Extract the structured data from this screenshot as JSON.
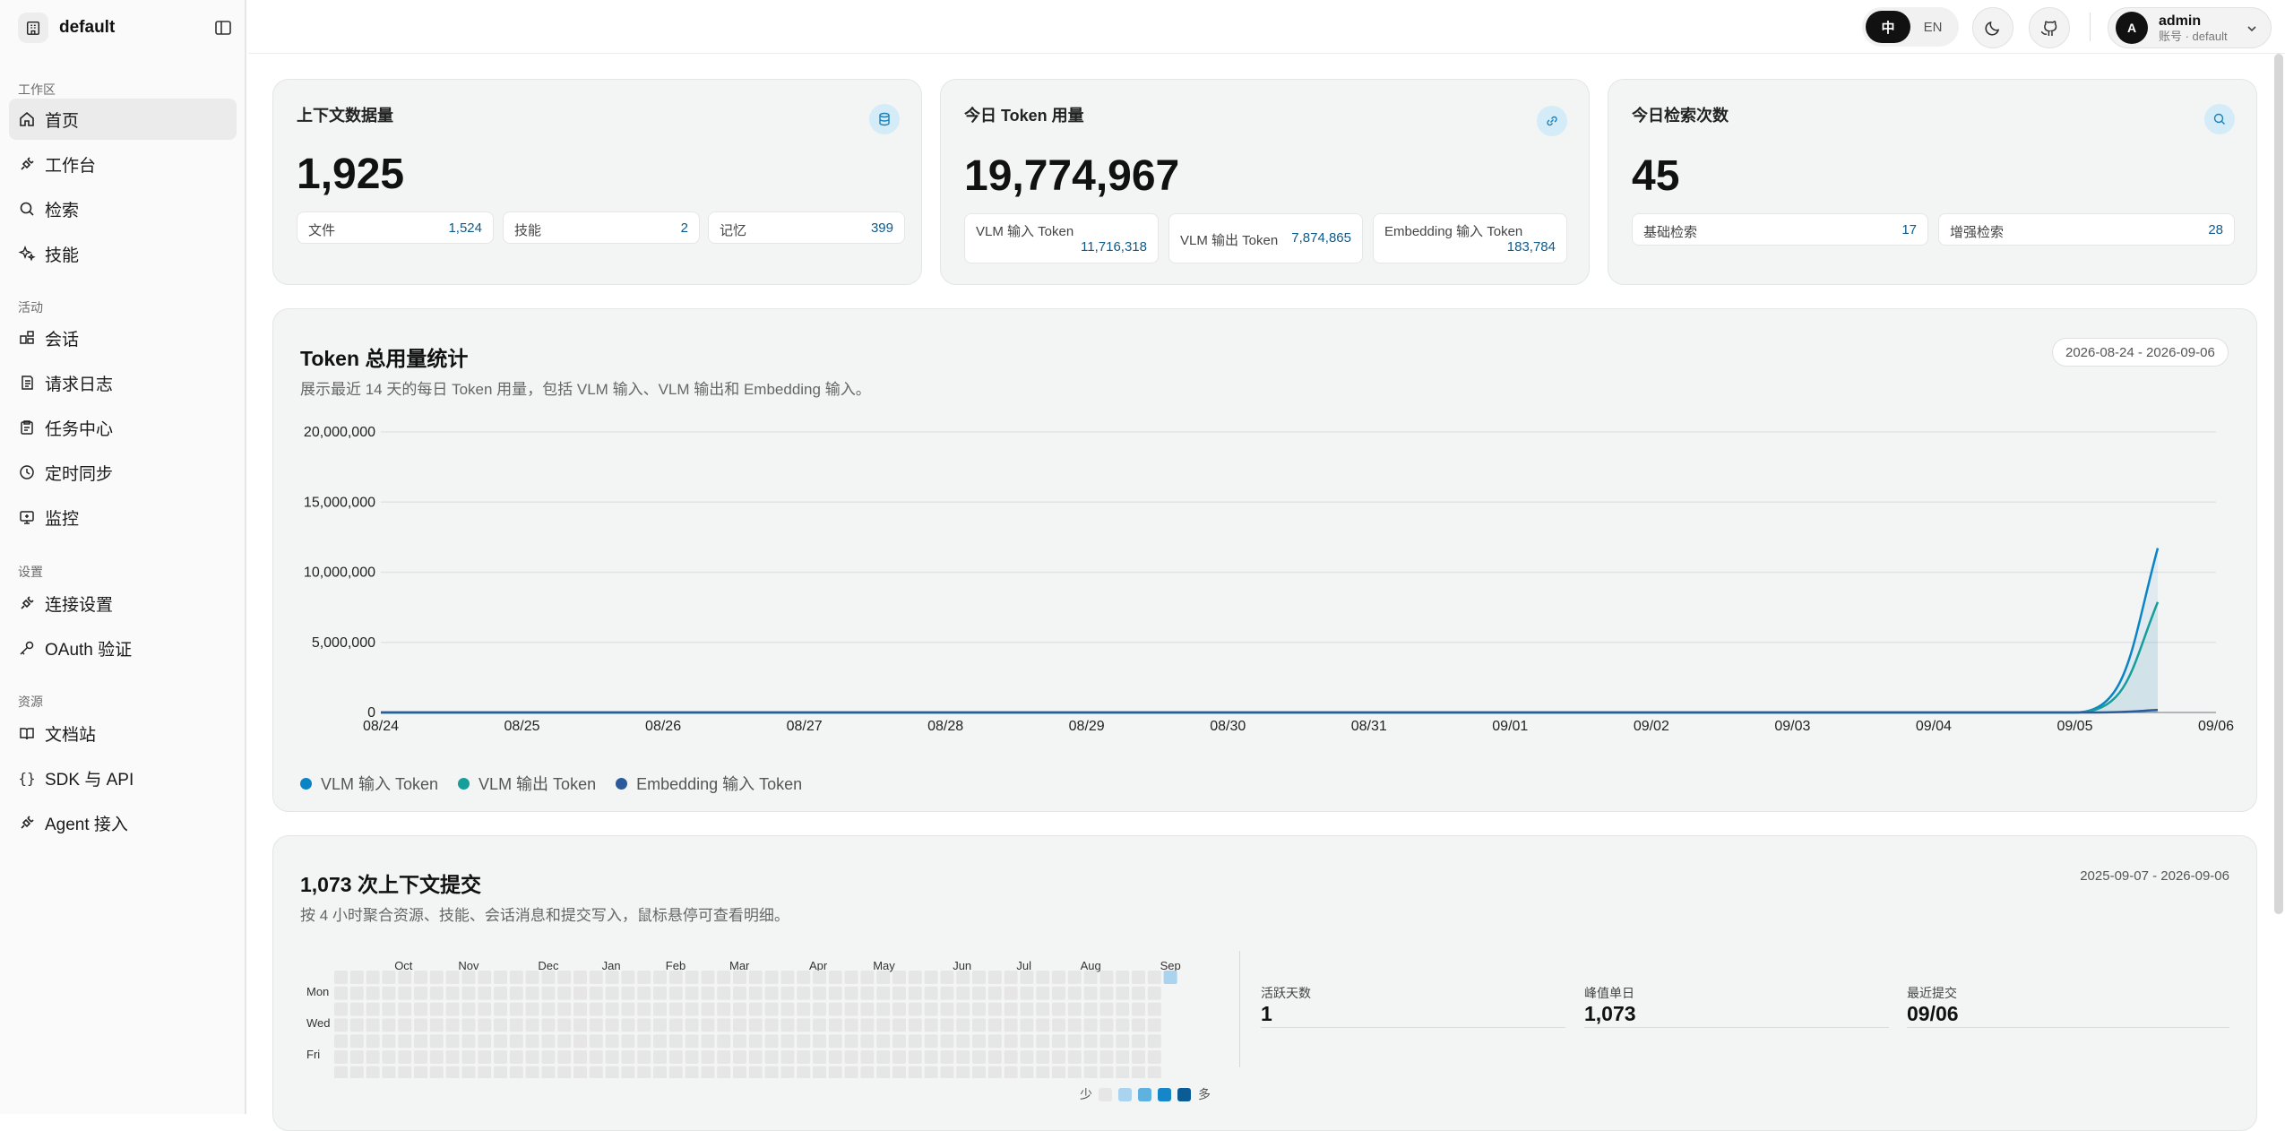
{
  "workspace": {
    "name": "default"
  },
  "sidebar": {
    "sections": [
      {
        "label": "工作区",
        "items": [
          {
            "label": "首页",
            "icon": "home-icon",
            "active": true
          },
          {
            "label": "工作台",
            "icon": "plug-icon"
          },
          {
            "label": "检索",
            "icon": "search-icon"
          },
          {
            "label": "技能",
            "icon": "sparkles-icon"
          }
        ]
      },
      {
        "label": "活动",
        "items": [
          {
            "label": "会话",
            "icon": "chat-icon"
          },
          {
            "label": "请求日志",
            "icon": "log-icon"
          },
          {
            "label": "任务中心",
            "icon": "clipboard-icon"
          },
          {
            "label": "定时同步",
            "icon": "clock-icon"
          },
          {
            "label": "监控",
            "icon": "monitor-icon"
          }
        ]
      },
      {
        "label": "设置",
        "items": [
          {
            "label": "连接设置",
            "icon": "plug-icon"
          },
          {
            "label": "OAuth 验证",
            "icon": "key-icon"
          }
        ]
      },
      {
        "label": "资源",
        "items": [
          {
            "label": "文档站",
            "icon": "book-icon"
          },
          {
            "label": "SDK 与 API",
            "icon": "braces-icon"
          },
          {
            "label": "Agent 接入",
            "icon": "plug-icon"
          }
        ]
      }
    ]
  },
  "topbar": {
    "lang": {
      "zh": "中",
      "en": "EN",
      "active": "zh"
    },
    "user": {
      "initial": "A",
      "name": "admin",
      "sub": "账号 · default"
    }
  },
  "stats": {
    "context": {
      "title": "上下文数据量",
      "value": "1,925",
      "chips": [
        {
          "label": "文件",
          "value": "1,524"
        },
        {
          "label": "技能",
          "value": "2"
        },
        {
          "label": "记忆",
          "value": "399"
        }
      ]
    },
    "tokens": {
      "title": "今日 Token 用量",
      "value": "19,774,967",
      "chips": [
        {
          "label": "VLM 输入 Token",
          "value": "11,716,318"
        },
        {
          "label": "VLM 输出 Token",
          "value": "7,874,865"
        },
        {
          "label": "Embedding 输入 Token",
          "value": "183,784"
        }
      ]
    },
    "searches": {
      "title": "今日检索次数",
      "value": "45",
      "chips": [
        {
          "label": "基础检索",
          "value": "17"
        },
        {
          "label": "增强检索",
          "value": "28"
        }
      ]
    }
  },
  "token_chart": {
    "title": "Token 总用量统计",
    "subtitle": "展示最近 14 天的每日 Token 用量，包括 VLM 输入、VLM 输出和 Embedding 输入。",
    "date_range": "2026-08-24 - 2026-09-06"
  },
  "chart_data": {
    "type": "area",
    "x": [
      "08/24",
      "08/25",
      "08/26",
      "08/27",
      "08/28",
      "08/29",
      "08/30",
      "08/31",
      "09/01",
      "09/02",
      "09/03",
      "09/04",
      "09/05",
      "09/06"
    ],
    "yticks": [
      "0",
      "5,000,000",
      "10,000,000",
      "15,000,000",
      "20,000,000"
    ],
    "ylim": [
      0,
      20000000
    ],
    "grid": true,
    "legend_position": "bottom-left",
    "series": [
      {
        "name": "VLM 输入 Token",
        "color": "#0b84c6",
        "values": [
          0,
          0,
          0,
          0,
          0,
          0,
          0,
          0,
          0,
          0,
          0,
          0,
          0,
          11716318
        ]
      },
      {
        "name": "VLM 输出 Token",
        "color": "#159e9a",
        "values": [
          0,
          0,
          0,
          0,
          0,
          0,
          0,
          0,
          0,
          0,
          0,
          0,
          0,
          7874865
        ]
      },
      {
        "name": "Embedding 输入 Token",
        "color": "#2b5b9a",
        "values": [
          0,
          0,
          0,
          0,
          0,
          0,
          0,
          0,
          0,
          0,
          0,
          0,
          0,
          183784
        ]
      }
    ]
  },
  "commits": {
    "title": "1,073 次上下文提交",
    "subtitle": "按 4 小时聚合资源、技能、会话消息和提交写入，鼠标悬停可查看明细。",
    "date_range": "2025-09-07 - 2026-09-06",
    "months": [
      "Oct",
      "Nov",
      "Dec",
      "Jan",
      "Feb",
      "Mar",
      "Apr",
      "May",
      "Jun",
      "Jul",
      "Aug",
      "Sep"
    ],
    "days": [
      "Mon",
      "Wed",
      "Fri"
    ],
    "legend_less": "少",
    "legend_more": "多",
    "legend_colors": [
      "#e6e6e6",
      "#a9d3ee",
      "#5fb1e0",
      "#1587c9",
      "#0b5c95"
    ],
    "summary": [
      {
        "label": "活跃天数",
        "value": "1"
      },
      {
        "label": "峰值单日",
        "value": "1,073"
      },
      {
        "label": "最近提交",
        "value": "09/06"
      }
    ]
  }
}
